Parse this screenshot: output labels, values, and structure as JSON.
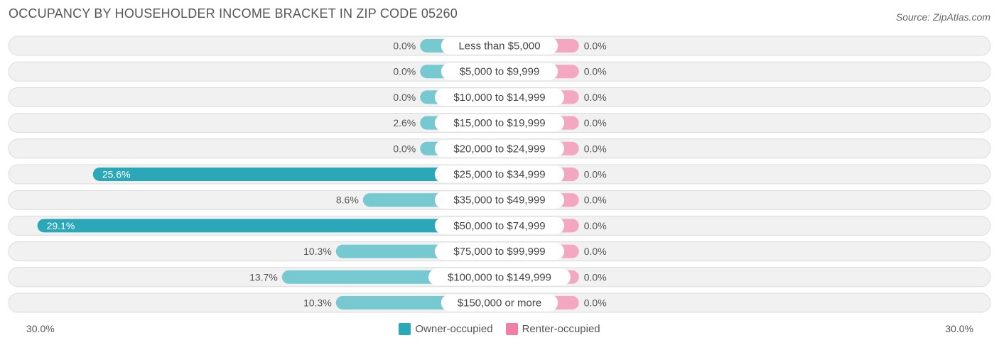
{
  "header": {
    "title": "OCCUPANCY BY HOUSEHOLDER INCOME BRACKET IN ZIP CODE 05260",
    "source": "Source: ZipAtlas.com"
  },
  "colors": {
    "owner_strong": "#2aa8b8",
    "owner_light": "#76c8d1",
    "renter": "#f4a7c0",
    "renter_legend": "#f07fa3",
    "row_bg": "#f1f1f1",
    "row_border": "#dcdcdc"
  },
  "chart_data": {
    "type": "bar",
    "orientation": "horizontal-diverging",
    "categories": [
      "Less than $5,000",
      "$5,000 to $9,999",
      "$10,000 to $14,999",
      "$15,000 to $19,999",
      "$20,000 to $24,999",
      "$25,000 to $34,999",
      "$35,000 to $49,999",
      "$50,000 to $74,999",
      "$75,000 to $99,999",
      "$100,000 to $149,999",
      "$150,000 or more"
    ],
    "series": [
      {
        "name": "Owner-occupied",
        "values": [
          0.0,
          0.0,
          0.0,
          2.6,
          0.0,
          25.6,
          8.6,
          29.1,
          10.3,
          13.7,
          10.3
        ],
        "labels": [
          "0.0%",
          "0.0%",
          "0.0%",
          "2.6%",
          "0.0%",
          "25.6%",
          "8.6%",
          "29.1%",
          "10.3%",
          "13.7%",
          "10.3%"
        ]
      },
      {
        "name": "Renter-occupied",
        "values": [
          0.0,
          0.0,
          0.0,
          0.0,
          0.0,
          0.0,
          0.0,
          0.0,
          0.0,
          0.0,
          0.0
        ],
        "labels": [
          "0.0%",
          "0.0%",
          "0.0%",
          "0.0%",
          "0.0%",
          "0.0%",
          "0.0%",
          "0.0%",
          "0.0%",
          "0.0%",
          "0.0%"
        ]
      }
    ],
    "xlim": [
      -30,
      30
    ],
    "axis_labels": {
      "left": "30.0%",
      "right": "30.0%"
    },
    "legend_position": "bottom-center"
  }
}
